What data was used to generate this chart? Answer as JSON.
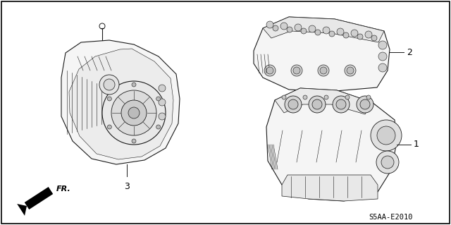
{
  "bg": "#ffffff",
  "border": "#000000",
  "lc": "#1a1a1a",
  "fill_light": "#f5f5f5",
  "fill_mid": "#e0e0e0",
  "fill_dark": "#c8c8c8",
  "fig_w": 6.4,
  "fig_h": 3.19,
  "dpi": 100,
  "ref": "S5AA-E2010",
  "fr": "FR.",
  "l1": "1",
  "l2": "2",
  "l3": "3"
}
